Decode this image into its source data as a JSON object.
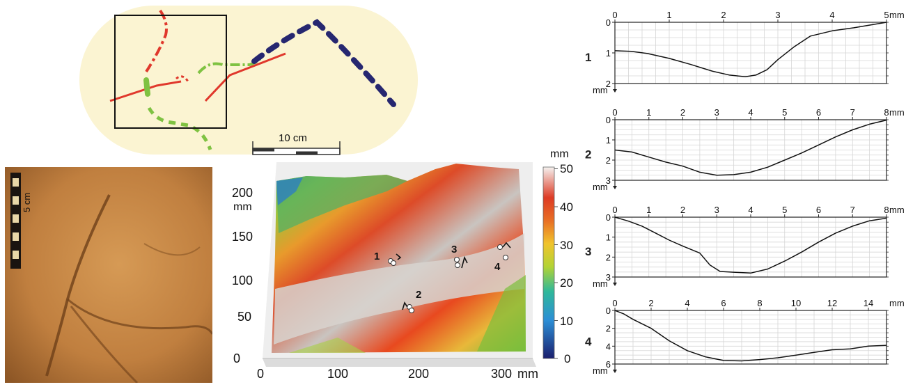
{
  "map": {
    "scale_label": "10 cm"
  },
  "photo": {
    "scale_label": "5 cm"
  },
  "surface": {
    "unit_y": "mm",
    "unit_x": "mm",
    "y_ticks": [
      "0",
      "50",
      "100",
      "150",
      "200"
    ],
    "x_ticks": [
      "0",
      "100",
      "200",
      "300"
    ],
    "colorbar_unit": "mm",
    "colorbar_ticks": [
      "0",
      "10",
      "20",
      "30",
      "40",
      "50"
    ],
    "profile_markers": [
      "1",
      "2",
      "3",
      "4"
    ]
  },
  "chart_data": [
    {
      "type": "line",
      "panel_label": "1",
      "x_unit": "mm",
      "y_unit": "mm",
      "xlim": [
        0,
        5
      ],
      "ylim": [
        0,
        2
      ],
      "x_ticks": [
        "0",
        "1",
        "2",
        "3",
        "4",
        "5"
      ],
      "y_ticks": [
        "0",
        "1",
        "2"
      ],
      "x": [
        0,
        0.3,
        0.6,
        1.0,
        1.4,
        1.8,
        2.1,
        2.4,
        2.6,
        2.8,
        3.0,
        3.3,
        3.6,
        4.0,
        4.4,
        4.8,
        5.0
      ],
      "y": [
        0.93,
        0.95,
        1.02,
        1.18,
        1.38,
        1.6,
        1.72,
        1.78,
        1.72,
        1.55,
        1.22,
        0.8,
        0.45,
        0.28,
        0.18,
        0.06,
        0.0
      ]
    },
    {
      "type": "line",
      "panel_label": "2",
      "x_unit": "mm",
      "y_unit": "mm",
      "xlim": [
        0,
        8
      ],
      "ylim": [
        0,
        3
      ],
      "x_ticks": [
        "0",
        "1",
        "2",
        "3",
        "4",
        "5",
        "6",
        "7",
        "8"
      ],
      "y_ticks": [
        "0",
        "1",
        "2",
        "3"
      ],
      "x": [
        0,
        0.5,
        1.0,
        1.5,
        2.0,
        2.5,
        3.0,
        3.5,
        4.0,
        4.5,
        5.0,
        5.5,
        6.0,
        6.5,
        7.0,
        7.5,
        8.0
      ],
      "y": [
        1.5,
        1.6,
        1.85,
        2.1,
        2.3,
        2.6,
        2.75,
        2.72,
        2.6,
        2.35,
        2.0,
        1.65,
        1.25,
        0.85,
        0.5,
        0.22,
        0.02
      ]
    },
    {
      "type": "line",
      "panel_label": "3",
      "x_unit": "mm",
      "y_unit": "mm",
      "xlim": [
        0,
        8
      ],
      "ylim": [
        0,
        3
      ],
      "x_ticks": [
        "0",
        "1",
        "2",
        "3",
        "4",
        "5",
        "6",
        "7",
        "8"
      ],
      "y_ticks": [
        "0",
        "1",
        "2",
        "3"
      ],
      "x": [
        0,
        0.4,
        0.8,
        1.2,
        1.6,
        2.0,
        2.5,
        2.8,
        3.1,
        3.5,
        4.0,
        4.5,
        5.0,
        5.5,
        6.0,
        6.5,
        7.0,
        7.5,
        8.0
      ],
      "y": [
        0.0,
        0.2,
        0.45,
        0.8,
        1.15,
        1.45,
        1.8,
        2.4,
        2.72,
        2.76,
        2.8,
        2.6,
        2.2,
        1.75,
        1.25,
        0.8,
        0.45,
        0.18,
        0.05
      ]
    },
    {
      "type": "line",
      "panel_label": "4",
      "x_unit": "mm",
      "y_unit": "mm",
      "xlim": [
        0,
        15
      ],
      "ylim": [
        0,
        6
      ],
      "x_ticks": [
        "0",
        "2",
        "4",
        "6",
        "8",
        "10",
        "12",
        "14"
      ],
      "y_ticks": [
        "0",
        "2",
        "4",
        "6"
      ],
      "x": [
        0,
        0.5,
        1.0,
        2.0,
        3.0,
        4.0,
        5.0,
        6.0,
        7.0,
        8.0,
        9.0,
        10.0,
        11.0,
        12.0,
        13.0,
        14.0,
        15.0
      ],
      "y": [
        0.0,
        0.4,
        1.0,
        2.0,
        3.4,
        4.5,
        5.2,
        5.6,
        5.65,
        5.5,
        5.3,
        5.0,
        4.7,
        4.4,
        4.3,
        4.0,
        3.9
      ]
    }
  ]
}
